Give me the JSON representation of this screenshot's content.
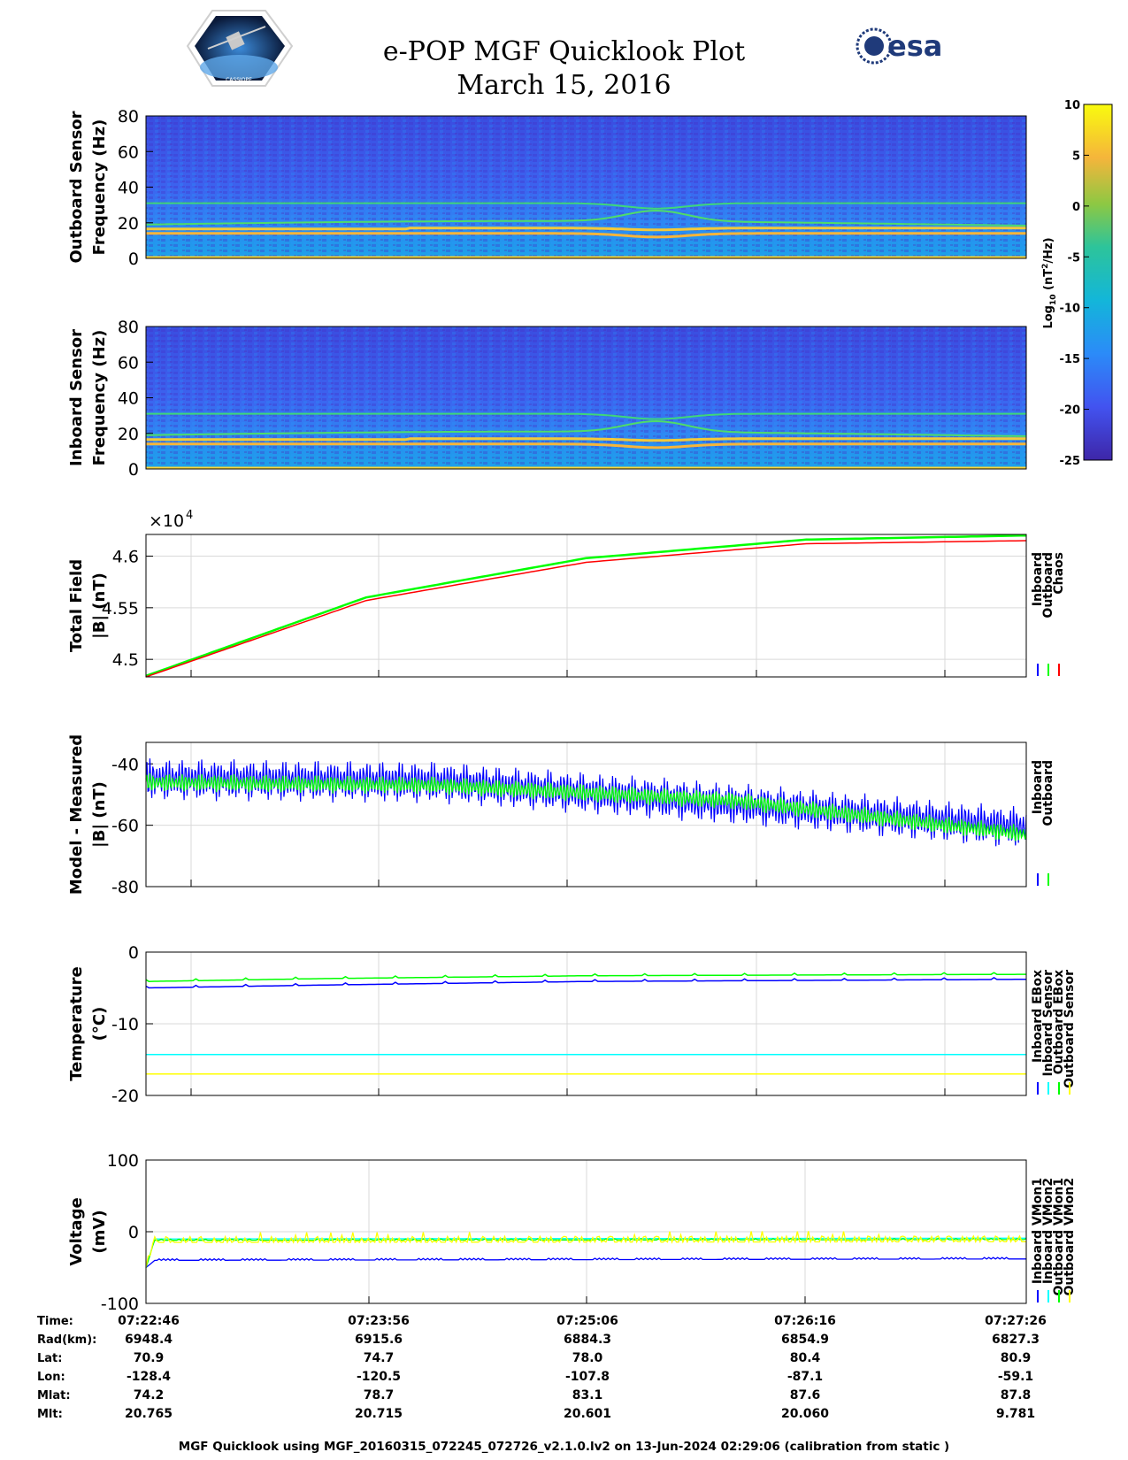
{
  "header": {
    "title_line1": "e-POP MGF Quicklook Plot",
    "title_line2": "March 15, 2016",
    "logo_left_label": "CASSIOPE",
    "logo_right_label": "esa"
  },
  "colors": {
    "inboard": "#0000ff",
    "outboard": "#00ff00",
    "chaos": "#ff0000",
    "inboard_sensor": "#00ffff",
    "outboard_sensor": "#ffff00",
    "grid": "#d9d9d9"
  },
  "colorbar": {
    "label": "Log10 (nT2/Hz)",
    "ticks": [
      "10",
      "5",
      "0",
      "-5",
      "-10",
      "-15",
      "-20",
      "-25"
    ],
    "range": [
      -25,
      10
    ]
  },
  "chart_data": [
    {
      "type": "heatmap",
      "ylabel": [
        "Outboard Sensor",
        "Frequency (Hz)"
      ],
      "ylim": [
        0,
        80
      ],
      "yticks": [
        "80",
        "60",
        "40",
        "20",
        "0"
      ],
      "bands_hz": [
        31,
        22,
        17,
        14,
        0.5
      ]
    },
    {
      "type": "heatmap",
      "ylabel": [
        "Inboard Sensor",
        "Frequency (Hz)"
      ],
      "ylim": [
        0,
        80
      ],
      "yticks": [
        "80",
        "60",
        "40",
        "20",
        "0"
      ],
      "bands_hz": [
        31,
        22,
        17,
        14,
        0.5
      ]
    },
    {
      "type": "line",
      "ylabel": [
        "Total Field",
        "|B| (nT)"
      ],
      "exponent": "×10",
      "exponent_power": "4",
      "yticks": [
        "4.6",
        "4.55",
        "4.5"
      ],
      "ylim": [
        44830,
        46210
      ],
      "grid": true,
      "legend": [
        "Inboard",
        "Outboard",
        "Chaos"
      ],
      "series": [
        {
          "name": "Inboard",
          "x": [
            0,
            0.25,
            0.5,
            0.75,
            1
          ],
          "y": [
            44840,
            45600,
            45980,
            46160,
            46200
          ]
        },
        {
          "name": "Outboard",
          "x": [
            0,
            0.25,
            0.5,
            0.75,
            1
          ],
          "y": [
            44840,
            45600,
            45980,
            46160,
            46200
          ]
        },
        {
          "name": "Chaos",
          "x": [
            0,
            0.25,
            0.5,
            0.75,
            1
          ],
          "y": [
            44830,
            45570,
            45940,
            46120,
            46150
          ]
        }
      ]
    },
    {
      "type": "line",
      "ylabel": [
        "Model - Measured",
        "|B| (nT)"
      ],
      "yticks": [
        "-40",
        "-60",
        "-80"
      ],
      "ylim": [
        -80,
        -33
      ],
      "grid": true,
      "legend": [
        "Inboard",
        "Outboard"
      ],
      "series": [
        {
          "name": "Inboard",
          "center": [
            -45,
            -46,
            -53,
            -61
          ],
          "amplitude": 7
        },
        {
          "name": "Outboard",
          "center": [
            -46,
            -47,
            -52,
            -63
          ],
          "amplitude": 3
        }
      ]
    },
    {
      "type": "line",
      "ylabel": [
        "Temperature",
        "(°C)"
      ],
      "yticks": [
        "0",
        "-10",
        "-20"
      ],
      "ylim": [
        -20,
        0
      ],
      "grid": true,
      "legend": [
        "Inboard EBox",
        "Inboard Sensor",
        "Outboard EBox",
        "Outboard Sensor"
      ],
      "series": [
        {
          "name": "Inboard EBox",
          "x": [
            0,
            0.05,
            0.2,
            0.5,
            1
          ],
          "y": [
            -5,
            -4.9,
            -4.6,
            -4.1,
            -3.8
          ]
        },
        {
          "name": "Inboard Sensor",
          "x": [
            0,
            0.05,
            0.2,
            0.5,
            1
          ],
          "y": [
            -4.1,
            -4.0,
            -3.7,
            -3.3,
            -3.1
          ]
        },
        {
          "name": "Outboard EBox",
          "x": [
            0,
            1
          ],
          "y": [
            -14.3,
            -14.3
          ]
        },
        {
          "name": "Outboard Sensor",
          "x": [
            0,
            1
          ],
          "y": [
            -17.0,
            -17.0
          ]
        }
      ]
    },
    {
      "type": "line",
      "ylabel": [
        "Voltage",
        "(mV)"
      ],
      "yticks": [
        "100",
        "0",
        "-100"
      ],
      "ylim": [
        -100,
        100
      ],
      "grid": true,
      "legend": [
        "Inboard VMon1",
        "Inboard VMon2",
        "Outboard VMon1",
        "Outboard VMon2"
      ],
      "series": [
        {
          "name": "Inboard VMon1",
          "y": [
            -40,
            -38
          ]
        },
        {
          "name": "Inboard VMon2",
          "y": [
            -10,
            -9
          ]
        },
        {
          "name": "Outboard VMon1",
          "y": [
            -12,
            -11
          ]
        },
        {
          "name": "Outboard VMon2",
          "y": [
            -15,
            -14
          ]
        }
      ]
    }
  ],
  "ephemeris": {
    "labels": [
      "Time:",
      "Rad(km):",
      "Lat:",
      "Lon:",
      "Mlat:",
      "Mlt:"
    ],
    "columns": [
      [
        "07:22:46",
        "6948.4",
        "70.9",
        "-128.4",
        "74.2",
        "20.765"
      ],
      [
        "07:23:56",
        "6915.6",
        "74.7",
        "-120.5",
        "78.7",
        "20.715"
      ],
      [
        "07:25:06",
        "6884.3",
        "78.0",
        "-107.8",
        "83.1",
        "20.601"
      ],
      [
        "07:26:16",
        "6854.9",
        "80.4",
        "-87.1",
        "87.6",
        "20.060"
      ],
      [
        "07:27:26",
        "6827.3",
        "80.9",
        "-59.1",
        "87.8",
        "9.781"
      ]
    ]
  },
  "footer": "MGF Quicklook using MGF_20160315_072245_072726_v2.1.0.lv2 on 13-Jun-2024 02:29:06 (calibration from static )"
}
